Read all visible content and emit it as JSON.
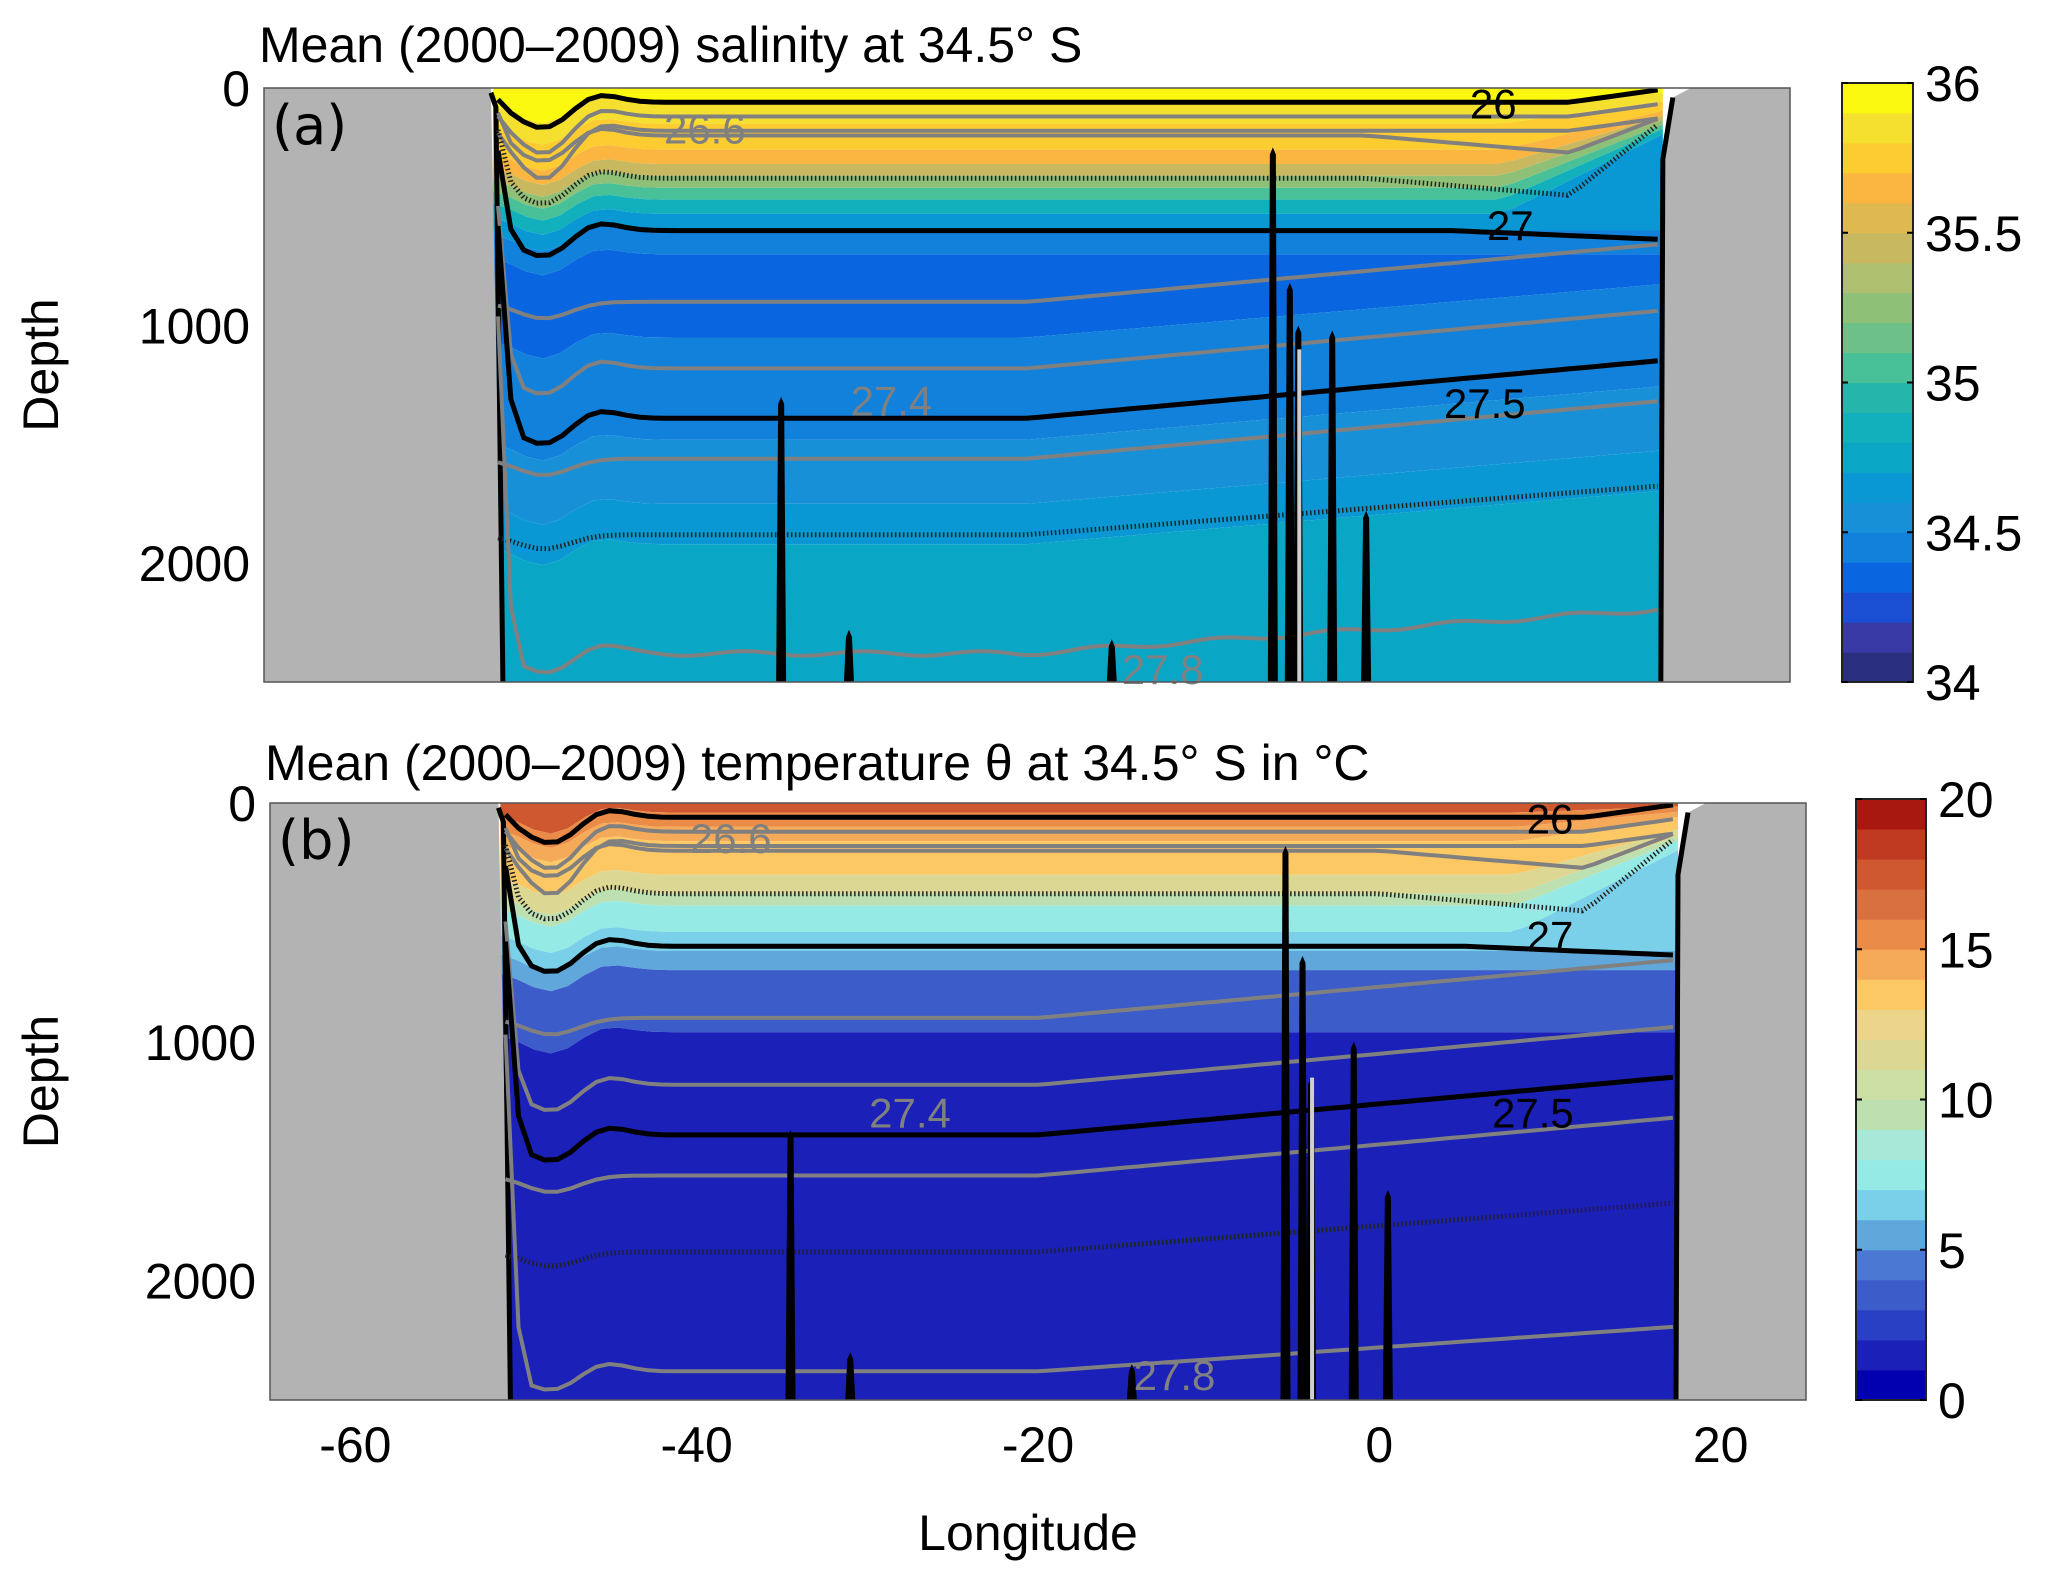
{
  "chart_data": [
    {
      "type": "heatmap",
      "panel_label": "(a)",
      "title": "Mean (2000–2009) salinity at 34.5° S",
      "xlabel": "",
      "ylabel": "Depth",
      "xlim": [
        -65,
        25
      ],
      "ylim": [
        2500,
        0
      ],
      "y_inverted": true,
      "xticks": [],
      "yticks": [
        0,
        1000,
        2000
      ],
      "ytick_labels": [
        "0",
        "1000",
        "2000"
      ],
      "colorbar": {
        "min": 34,
        "max": 36,
        "step": 0.1,
        "ticks": [
          34,
          34.5,
          35,
          35.5,
          36
        ],
        "tick_labels": [
          "34",
          "34.5",
          "35",
          "35.5",
          "36"
        ],
        "colors": [
          "#2b2f80",
          "#3a3aa6",
          "#1a4fd4",
          "#0a66e0",
          "#1281dc",
          "#1890d8",
          "#0a98d4",
          "#0aa6c6",
          "#12b0bc",
          "#26b5aa",
          "#48c098",
          "#6cc088",
          "#8fc078",
          "#aec070",
          "#c8b860",
          "#e0b850",
          "#fab640",
          "#fdcc30",
          "#f5e030",
          "#f9f80e"
        ]
      },
      "land_color": "#b3b3b3",
      "land_west_edge_lon": -51.5,
      "land_east_edge_lon": 17.5,
      "isopycnals": [
        {
          "value": 26,
          "style": "black",
          "label": "26",
          "label_lon": 7.5,
          "label_depth": 70
        },
        {
          "value": 26.6,
          "style": "gray",
          "label": "26.6",
          "label_lon": -39,
          "label_depth": 175
        },
        {
          "value": 26.8,
          "style": "dotted",
          "label": ""
        },
        {
          "value": 27,
          "style": "black",
          "label": "27",
          "label_lon": 8.5,
          "label_depth": 580
        },
        {
          "value": 27.4,
          "style": "gray",
          "label": "27.4",
          "label_lon": -28,
          "label_depth": 1320
        },
        {
          "value": 27.5,
          "style": "black",
          "label": "27.5",
          "label_lon": 7,
          "label_depth": 1330
        },
        {
          "value": 27.8,
          "style": "gray",
          "label": "27.8",
          "label_lon": -12,
          "label_depth": 2450
        }
      ],
      "ridges_lon": [
        -34.5,
        -30.5,
        -15,
        -5.5,
        -4.5,
        -4,
        -2,
        0
      ]
    },
    {
      "type": "heatmap",
      "panel_label": "(b)",
      "title": "Mean (2000–2009) temperature θ at 34.5° S in °C",
      "xlabel": "Longitude",
      "ylabel": "Depth",
      "xlim": [
        -65,
        25
      ],
      "ylim": [
        2500,
        0
      ],
      "y_inverted": true,
      "xticks": [
        -60,
        -40,
        -20,
        0,
        20
      ],
      "xtick_labels": [
        "-60",
        "-40",
        "-20",
        "0",
        "20"
      ],
      "yticks": [
        0,
        1000,
        2000
      ],
      "ytick_labels": [
        "0",
        "1000",
        "2000"
      ],
      "colorbar": {
        "min": 0,
        "max": 20,
        "step": 1,
        "ticks": [
          0,
          5,
          10,
          15,
          20
        ],
        "tick_labels": [
          "0",
          "5",
          "10",
          "15",
          "20"
        ],
        "colors": [
          "#0000b0",
          "#1a20b8",
          "#2a40c4",
          "#3c5cca",
          "#4a78d2",
          "#60a8dc",
          "#7ad0e8",
          "#96eae6",
          "#a8e8d8",
          "#bce0b0",
          "#cce0a6",
          "#dcd894",
          "#ecd48a",
          "#fcc864",
          "#f4aa58",
          "#ea8c48",
          "#d87040",
          "#d05830",
          "#bf3a20",
          "#a81810"
        ]
      },
      "land_color": "#b3b3b3",
      "land_west_edge_lon": -51.5,
      "land_east_edge_lon": 17.5,
      "isopycnals": [
        {
          "value": 26,
          "style": "black",
          "label": "26",
          "label_lon": 10,
          "label_depth": 70
        },
        {
          "value": 26.6,
          "style": "gray",
          "label": "26.6",
          "label_lon": -38,
          "label_depth": 150
        },
        {
          "value": 26.8,
          "style": "dotted",
          "label": ""
        },
        {
          "value": 27,
          "style": "black",
          "label": "27",
          "label_lon": 10,
          "label_depth": 560
        },
        {
          "value": 27.4,
          "style": "gray",
          "label": "27.4",
          "label_lon": -27.5,
          "label_depth": 1300
        },
        {
          "value": 27.5,
          "style": "black",
          "label": "27.5",
          "label_lon": 9,
          "label_depth": 1300
        },
        {
          "value": 27.8,
          "style": "gray",
          "label": "27.8",
          "label_lon": -12,
          "label_depth": 2400
        }
      ],
      "ridges_lon": [
        -34.5,
        -31,
        -14.5,
        -5.5,
        -4.5,
        -4,
        -1.5,
        0.5
      ]
    }
  ]
}
